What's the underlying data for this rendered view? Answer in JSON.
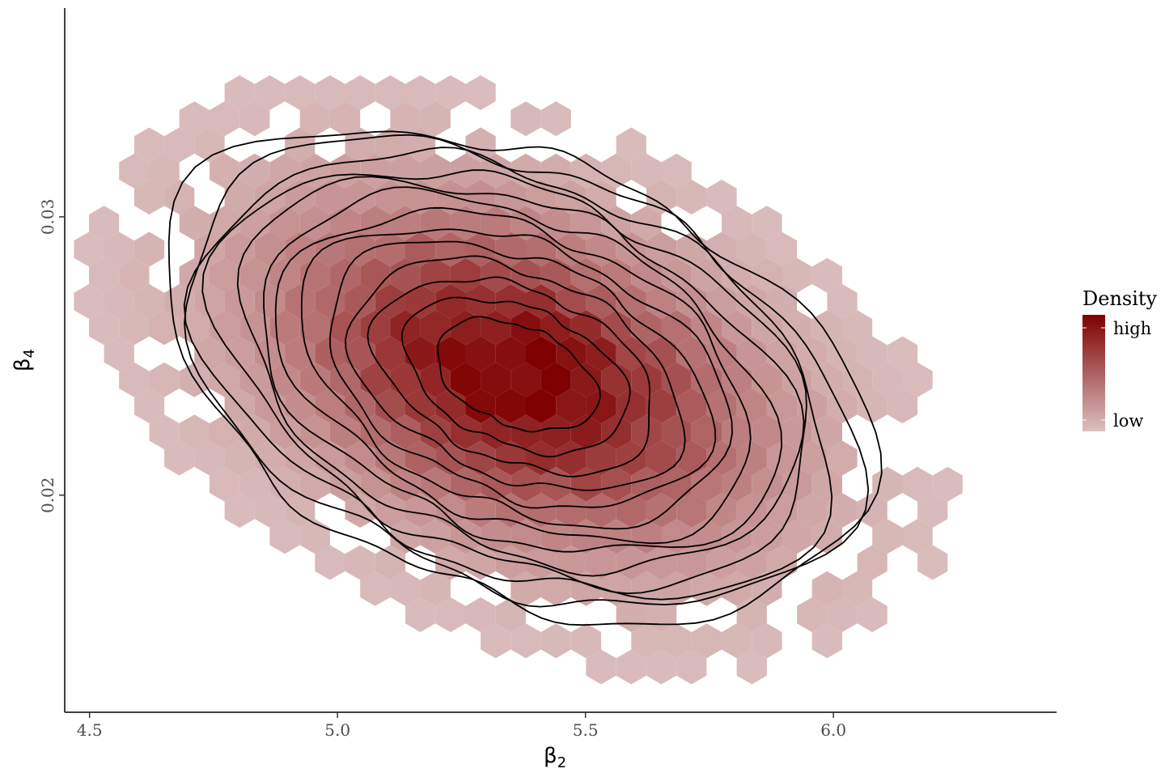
{
  "chart_data": {
    "type": "hexbin-density",
    "x_label": {
      "main": "β",
      "sub": "2"
    },
    "y_label": {
      "main": "β",
      "sub": "4"
    },
    "xlim": [
      4.45,
      6.45
    ],
    "ylim": [
      0.0122,
      0.0375
    ],
    "x_ticks": [
      {
        "value": 4.5,
        "label": "4.5"
      },
      {
        "value": 5.0,
        "label": "5.0"
      },
      {
        "value": 5.5,
        "label": "5.5"
      },
      {
        "value": 6.0,
        "label": "6.0"
      }
    ],
    "y_ticks": [
      {
        "value": 0.02,
        "label": "0.02"
      },
      {
        "value": 0.03,
        "label": "0.03"
      }
    ],
    "grid": false,
    "legend": {
      "title": "Density",
      "position": "right",
      "labels": {
        "high": "high",
        "low": "low"
      },
      "color_high": "#7f0000",
      "color_low": "#dcc0c0"
    },
    "distribution": {
      "center_x": 5.36,
      "center_y": 0.0243,
      "sd_x": 0.3,
      "sd_y": 0.0037,
      "correlation": -0.38
    },
    "contour_levels": 13
  }
}
